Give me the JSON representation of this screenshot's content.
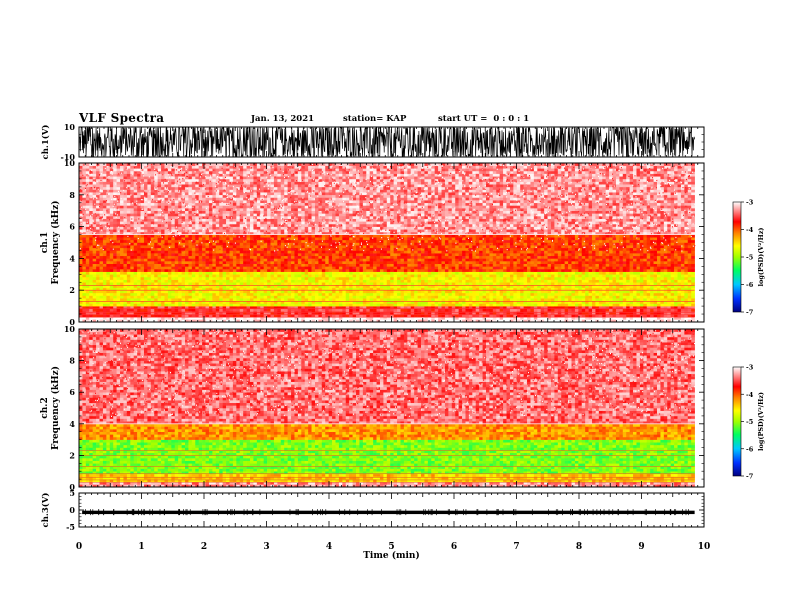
{
  "header": {
    "title": "VLF Spectra",
    "date": "Jan. 13, 2021",
    "station": "station= KAP",
    "start": "start UT =  0 : 0 : 1"
  },
  "colors": {
    "spectrogram_scale": [
      "#0000a0",
      "#0060ff",
      "#00e0ff",
      "#20ff40",
      "#ffff00",
      "#ff8000",
      "#ff0000",
      "#ffffff"
    ],
    "waveform": "#000000"
  },
  "chart_data": [
    {
      "type": "line",
      "panel": "ch1-waveform",
      "ylabel": "ch.1(V)",
      "ylim": [
        -10,
        10
      ],
      "yticks": [
        "10",
        "-10"
      ],
      "xlim": [
        0,
        10
      ],
      "description_values": {
        "trace_min_V": -10,
        "trace_max_V": 10,
        "baseline_V": 0
      },
      "x": [
        0,
        0.5,
        1,
        1.5,
        2,
        2.5,
        3,
        3.5,
        4,
        4.5,
        5,
        5.5,
        6,
        6.5,
        7,
        7.5,
        8,
        8.5,
        9,
        9.5,
        9.85
      ],
      "y_envelope_top": [
        9,
        9,
        9.5,
        9,
        9,
        9,
        9.5,
        9,
        9,
        9,
        9.5,
        9,
        9,
        9,
        9,
        9.5,
        9,
        9,
        9,
        9,
        9
      ],
      "y_envelope_bottom": [
        -9,
        -9,
        -9.5,
        -9,
        -9,
        -9,
        -9.5,
        -9,
        -9,
        -9,
        -9.5,
        -9,
        -9,
        -9,
        -9,
        -9.5,
        -9,
        -9,
        -9,
        -9,
        -9
      ]
    },
    {
      "type": "heatmap",
      "panel": "ch1-spectrogram",
      "ylabel_top": "ch.1",
      "ylabel": "Frequency (kHz)",
      "ylim": [
        0,
        10
      ],
      "yticks": [
        "0",
        "2",
        "4",
        "6",
        "8",
        "10"
      ],
      "xlim": [
        0,
        9.85
      ],
      "colorbar": {
        "label": "log(PSD)(V²/Hz)",
        "range": [
          -7,
          -3
        ],
        "ticks": [
          "-3",
          "-4",
          "-5",
          "-6",
          "-7"
        ]
      },
      "bands_kHz": [
        {
          "from": 0,
          "to": 0.3,
          "level": -3.0
        },
        {
          "from": 0.3,
          "to": 1.0,
          "level": -3.6
        },
        {
          "from": 1.0,
          "to": 3.2,
          "level": -4.6
        },
        {
          "from": 3.2,
          "to": 5.5,
          "level": -3.9
        },
        {
          "from": 5.5,
          "to": 10,
          "level": -3.3
        }
      ]
    },
    {
      "type": "heatmap",
      "panel": "ch2-spectrogram",
      "ylabel_top": "ch.2",
      "ylabel": "Frequency (kHz)",
      "ylim": [
        0,
        10
      ],
      "yticks": [
        "0",
        "2",
        "4",
        "6",
        "8",
        "10"
      ],
      "xlim": [
        0,
        9.85
      ],
      "colorbar": {
        "label": "log(PSD)(V²/Hz)",
        "range": [
          -7,
          -3
        ],
        "ticks": [
          "-3",
          "-4",
          "-5",
          "-6",
          "-7"
        ]
      },
      "bands_kHz": [
        {
          "from": 0,
          "to": 0.3,
          "level": -3.3
        },
        {
          "from": 0.3,
          "to": 0.9,
          "level": -4.4
        },
        {
          "from": 0.9,
          "to": 3.0,
          "level": -5.1
        },
        {
          "from": 3.0,
          "to": 4.0,
          "level": -4.2
        },
        {
          "from": 4.0,
          "to": 10,
          "level": -3.4
        }
      ]
    },
    {
      "type": "line",
      "panel": "ch3-waveform",
      "ylabel": "ch.3(V)",
      "ylim": [
        -5,
        5
      ],
      "yticks": [
        "5",
        "0",
        "-5"
      ],
      "xlim": [
        0,
        10
      ],
      "xlabel": "Time (min)",
      "xticks": [
        "0",
        "1",
        "2",
        "3",
        "4",
        "5",
        "6",
        "7",
        "8",
        "9",
        "10"
      ],
      "x": [
        0.05,
        9.85
      ],
      "y_envelope_top": [
        -0.2,
        -0.2
      ],
      "y_envelope_bottom": [
        -1.2,
        -1.2
      ]
    }
  ]
}
